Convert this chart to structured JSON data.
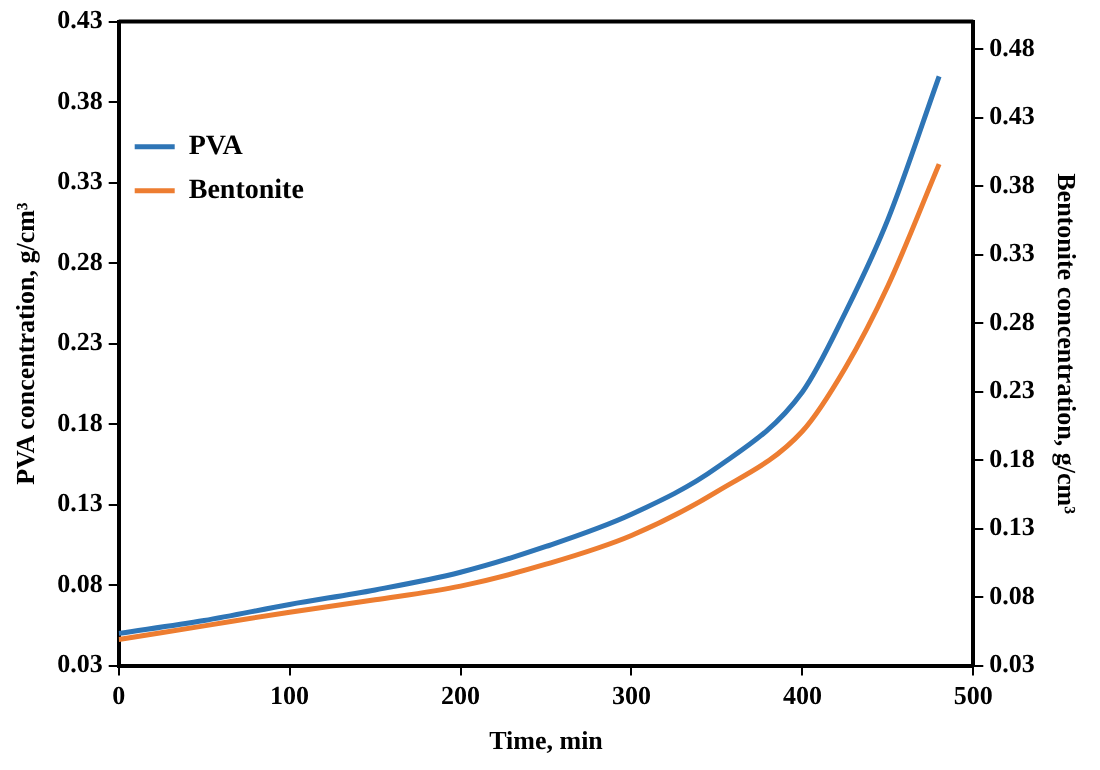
{
  "chart_data": {
    "type": "line",
    "xlabel": "Time, min",
    "ylabel": "PVA concentration, g/cm³",
    "y2label": "Bentonite concentration, g/cm³",
    "x": [
      0,
      50,
      100,
      150,
      200,
      250,
      300,
      350,
      400,
      425,
      450,
      480
    ],
    "series": [
      {
        "name": "PVA",
        "color": "#2e75b6",
        "values": [
          0.05,
          0.058,
          0.068,
          0.077,
          0.088,
          0.104,
          0.124,
          0.153,
          0.2,
          0.249,
          0.307,
          0.396
        ]
      },
      {
        "name": "Bentonite",
        "color": "#ed7d31",
        "axis": "y2",
        "values": [
          0.049,
          0.059,
          0.069,
          0.078,
          0.088,
          0.104,
          0.125,
          0.157,
          0.201,
          0.247,
          0.307,
          0.396
        ]
      }
    ],
    "xlim": [
      0,
      500
    ],
    "xticks": [
      0,
      100,
      200,
      300,
      400,
      500
    ],
    "ylim": [
      0.03,
      0.43
    ],
    "yticks": [
      0.03,
      0.08,
      0.13,
      0.18,
      0.23,
      0.28,
      0.33,
      0.38,
      0.43
    ],
    "y2lim": [
      0.03,
      0.5
    ],
    "y2ticks": [
      0.03,
      0.08,
      0.13,
      0.18,
      0.23,
      0.28,
      0.33,
      0.38,
      0.43,
      0.48
    ],
    "grid": false,
    "legend": "top left",
    "marker": "none",
    "line_style": "solid"
  }
}
